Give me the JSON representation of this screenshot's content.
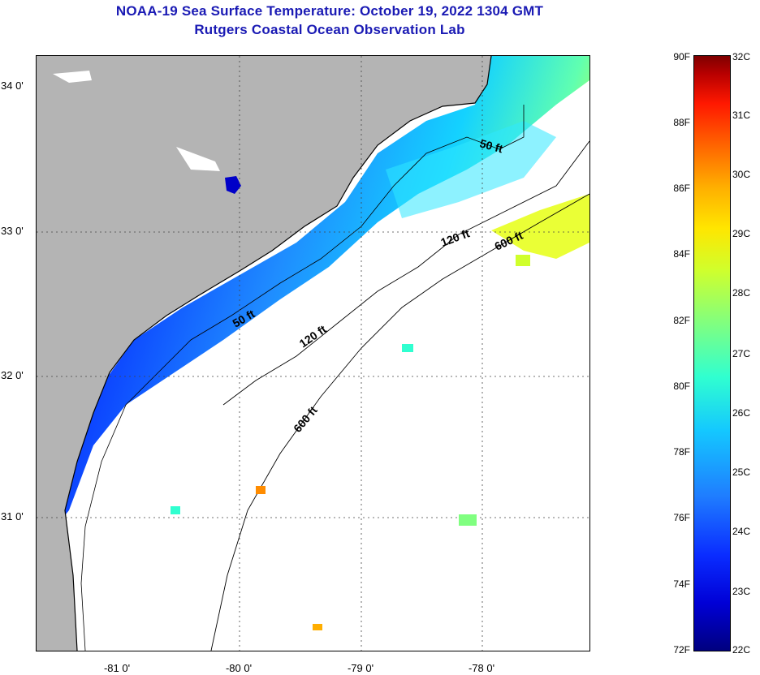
{
  "title_line1": "NOAA-19 Sea Surface Temperature:  October 19, 2022 1304 GMT",
  "title_line2": "Rutgers Coastal Ocean Observation Lab",
  "lat_labels": [
    "34 0'",
    "33 0'",
    "32 0'",
    "31 0'"
  ],
  "lon_labels": [
    "-81 0'",
    "-80 0'",
    "-79 0'",
    "-78 0'"
  ],
  "contour_labels": [
    "50 ft",
    "50 ft",
    "120 ft",
    "120 ft",
    "600 ft",
    "600 ft"
  ],
  "colorbar": {
    "fahrenheit": [
      "90F",
      "88F",
      "86F",
      "84F",
      "82F",
      "80F",
      "78F",
      "76F",
      "74F",
      "72F"
    ],
    "celsius": [
      "32C",
      "31C",
      "30C",
      "29C",
      "28C",
      "27C",
      "26C",
      "25C",
      "24C",
      "23C",
      "22C"
    ]
  },
  "colors": {
    "land": "#b4b4b4",
    "cold": "#0000c8",
    "mid": "#14c8ff",
    "warm": "#ffe600",
    "title": "#1a1ab4"
  }
}
